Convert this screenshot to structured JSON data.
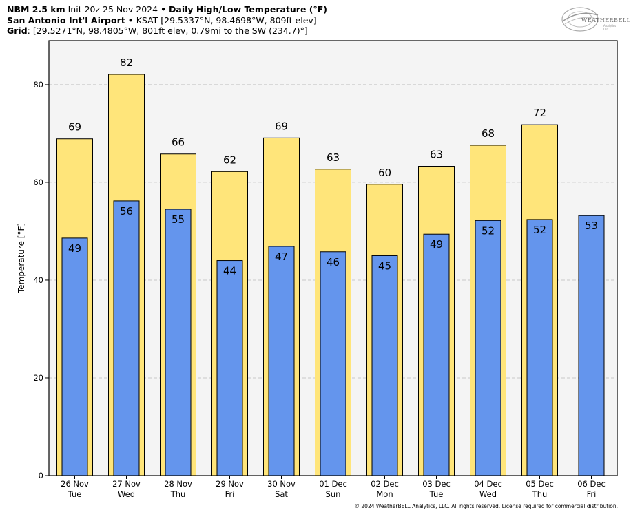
{
  "header": {
    "line1_model": "NBM 2.5 km",
    "line1_init": "Init 20z 25 Nov 2024",
    "line1_sep": "•",
    "line1_product": "Daily High/Low Temperature (°F)",
    "line2_station": "San Antonio Int'l Airport",
    "line2_sep": "•",
    "line2_info": "KSAT [29.5337°N, 98.4698°W, 809ft elev]",
    "line3_label": "Grid",
    "line3_info": ": [29.5271°N, 98.4805°W, 801ft elev, 0.79mi to the SW (234.7)°]"
  },
  "logo": {
    "text": "WEATHERBELL",
    "subtext": "Analytics LLC"
  },
  "copyright": "© 2024 WeatherBELL Analytics, LLC. All rights reserved. License required for commercial distribution.",
  "colors": {
    "high": "#FFE57A",
    "low": "#6495ED",
    "plot_bg": "#F4F4F4",
    "grid": "#C8C8C8"
  },
  "chart_data": {
    "type": "bar",
    "ylabel": "Temperature [°F]",
    "ylim": [
      0,
      89
    ],
    "yticks": [
      0,
      20,
      40,
      60,
      80
    ],
    "grid": true,
    "categories": [
      {
        "date": "26 Nov",
        "day": "Tue"
      },
      {
        "date": "27 Nov",
        "day": "Wed"
      },
      {
        "date": "28 Nov",
        "day": "Thu"
      },
      {
        "date": "29 Nov",
        "day": "Fri"
      },
      {
        "date": "30 Nov",
        "day": "Sat"
      },
      {
        "date": "01 Dec",
        "day": "Sun"
      },
      {
        "date": "02 Dec",
        "day": "Mon"
      },
      {
        "date": "03 Dec",
        "day": "Tue"
      },
      {
        "date": "04 Dec",
        "day": "Wed"
      },
      {
        "date": "05 Dec",
        "day": "Thu"
      },
      {
        "date": "06 Dec",
        "day": "Fri"
      }
    ],
    "series": [
      {
        "key": "high",
        "values": [
          68.9,
          82.1,
          65.8,
          62.2,
          69.1,
          62.7,
          59.6,
          63.3,
          67.6,
          71.8,
          null
        ],
        "labels": [
          "69",
          "82",
          "66",
          "62",
          "69",
          "63",
          "60",
          "63",
          "68",
          "72",
          ""
        ]
      },
      {
        "key": "low",
        "values": [
          48.6,
          56.2,
          54.5,
          44.0,
          46.9,
          45.8,
          45.0,
          49.4,
          52.2,
          52.4,
          53.2
        ],
        "labels": [
          "49",
          "56",
          "55",
          "44",
          "47",
          "46",
          "45",
          "49",
          "52",
          "52",
          "53"
        ]
      }
    ]
  }
}
